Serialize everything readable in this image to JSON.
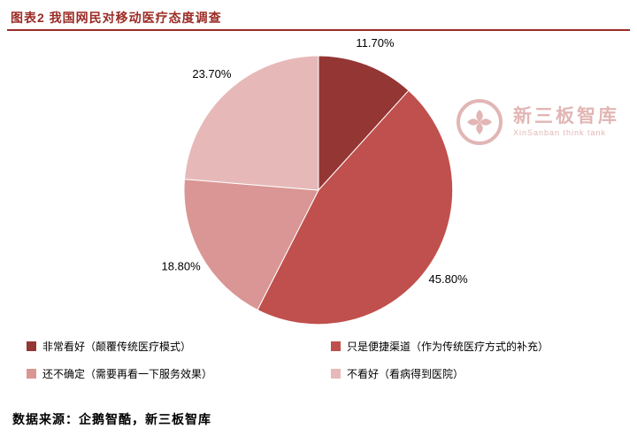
{
  "header": {
    "title": "图表2  我国网民对移动医疗态度调查"
  },
  "watermark": {
    "name": "新三板智库",
    "subtitle": "XinSanban think tank",
    "color": "#c4706c"
  },
  "chart_data": {
    "type": "pie",
    "title": "我国网民对移动医疗态度调查",
    "start_angle_deg": 0,
    "direction": "clockwise",
    "legend_position": "bottom",
    "legend_columns": 2,
    "slices": [
      {
        "label": "非常看好（颠覆传统医疗模式）",
        "value": 11.7,
        "display": "11.70%",
        "color": "#943634"
      },
      {
        "label": "只是便捷渠道（作为传统医疗方式的补充）",
        "value": 45.8,
        "display": "45.80%",
        "color": "#c0504d"
      },
      {
        "label": "还不确定（需要再看一下服务效果）",
        "value": 18.8,
        "display": "18.80%",
        "color": "#d99694"
      },
      {
        "label": "不看好（看病得到医院）",
        "value": 23.7,
        "display": "23.70%",
        "color": "#e6b9b8"
      }
    ]
  },
  "footer": {
    "source": "数据来源：企鹅智酷，新三板智库"
  }
}
